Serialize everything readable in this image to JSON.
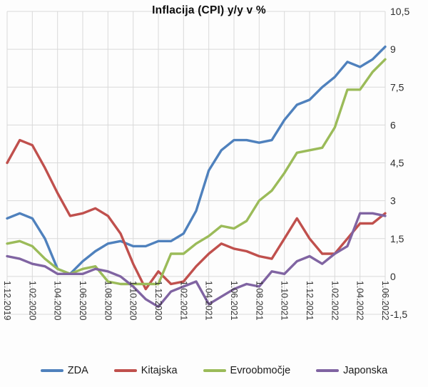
{
  "title": "Inflacija (CPI) y/y v %",
  "chart_data": {
    "type": "line",
    "title": "Inflacija (CPI) y/y v %",
    "x_tick_labels": [
      "1.12.2019",
      "1.02.2020",
      "1.04.2020",
      "1.06.2020",
      "1.08.2020",
      "1.10.2020",
      "1.12.2020",
      "1.02.2021",
      "1.04.2021",
      "1.06.2021",
      "1.08.2021",
      "1.10.2021",
      "1.12.2021",
      "1.02.2022",
      "1.04.2022",
      "1.06.2022"
    ],
    "x_label_every_n_points": 2,
    "x_range_note": "monthly points from 1.12.2019 to 1.06.2022",
    "ylim": [
      -1.5,
      10.5
    ],
    "y_tick_values": [
      10.5,
      9,
      7.5,
      6,
      4.5,
      3,
      1.5,
      0,
      -1.5
    ],
    "y_tick_labels": [
      "10,5",
      "9",
      "7,5",
      "6",
      "4,5",
      "3",
      "1,5",
      "0",
      "-1,5"
    ],
    "grid": true,
    "legend_position": "bottom",
    "series": [
      {
        "name": "ZDA",
        "color": "#4F81BD",
        "values": [
          2.3,
          2.5,
          2.3,
          1.5,
          0.3,
          0.1,
          0.6,
          1.0,
          1.3,
          1.4,
          1.2,
          1.2,
          1.4,
          1.4,
          1.7,
          2.6,
          4.2,
          5.0,
          5.4,
          5.4,
          5.3,
          5.4,
          6.2,
          6.8,
          7.0,
          7.5,
          7.9,
          8.5,
          8.3,
          8.6,
          9.1
        ]
      },
      {
        "name": "Kitajska",
        "color": "#C0504D",
        "values": [
          4.5,
          5.4,
          5.2,
          4.3,
          3.3,
          2.4,
          2.5,
          2.7,
          2.4,
          1.7,
          0.5,
          -0.5,
          0.2,
          -0.3,
          -0.2,
          0.4,
          0.9,
          1.3,
          1.1,
          1.0,
          0.8,
          0.7,
          1.5,
          2.3,
          1.5,
          0.9,
          0.9,
          1.5,
          2.1,
          2.1,
          2.5
        ]
      },
      {
        "name": "Evroobmočje",
        "color": "#9BBB59",
        "values": [
          1.3,
          1.4,
          1.2,
          0.7,
          0.3,
          0.1,
          0.3,
          0.4,
          -0.2,
          -0.3,
          -0.3,
          -0.3,
          -0.3,
          0.9,
          0.9,
          1.3,
          1.6,
          2.0,
          1.9,
          2.2,
          3.0,
          3.4,
          4.1,
          4.9,
          5.0,
          5.1,
          5.9,
          7.4,
          7.4,
          8.1,
          8.6
        ]
      },
      {
        "name": "Japonska",
        "color": "#8064A2",
        "values": [
          0.8,
          0.7,
          0.5,
          0.4,
          0.1,
          0.1,
          0.1,
          0.3,
          0.2,
          0.0,
          -0.4,
          -0.9,
          -1.2,
          -0.6,
          -0.4,
          -0.2,
          -1.1,
          -0.8,
          -0.5,
          -0.3,
          -0.4,
          0.2,
          0.1,
          0.6,
          0.8,
          0.5,
          0.9,
          1.2,
          2.5,
          2.5,
          2.4
        ]
      }
    ]
  }
}
